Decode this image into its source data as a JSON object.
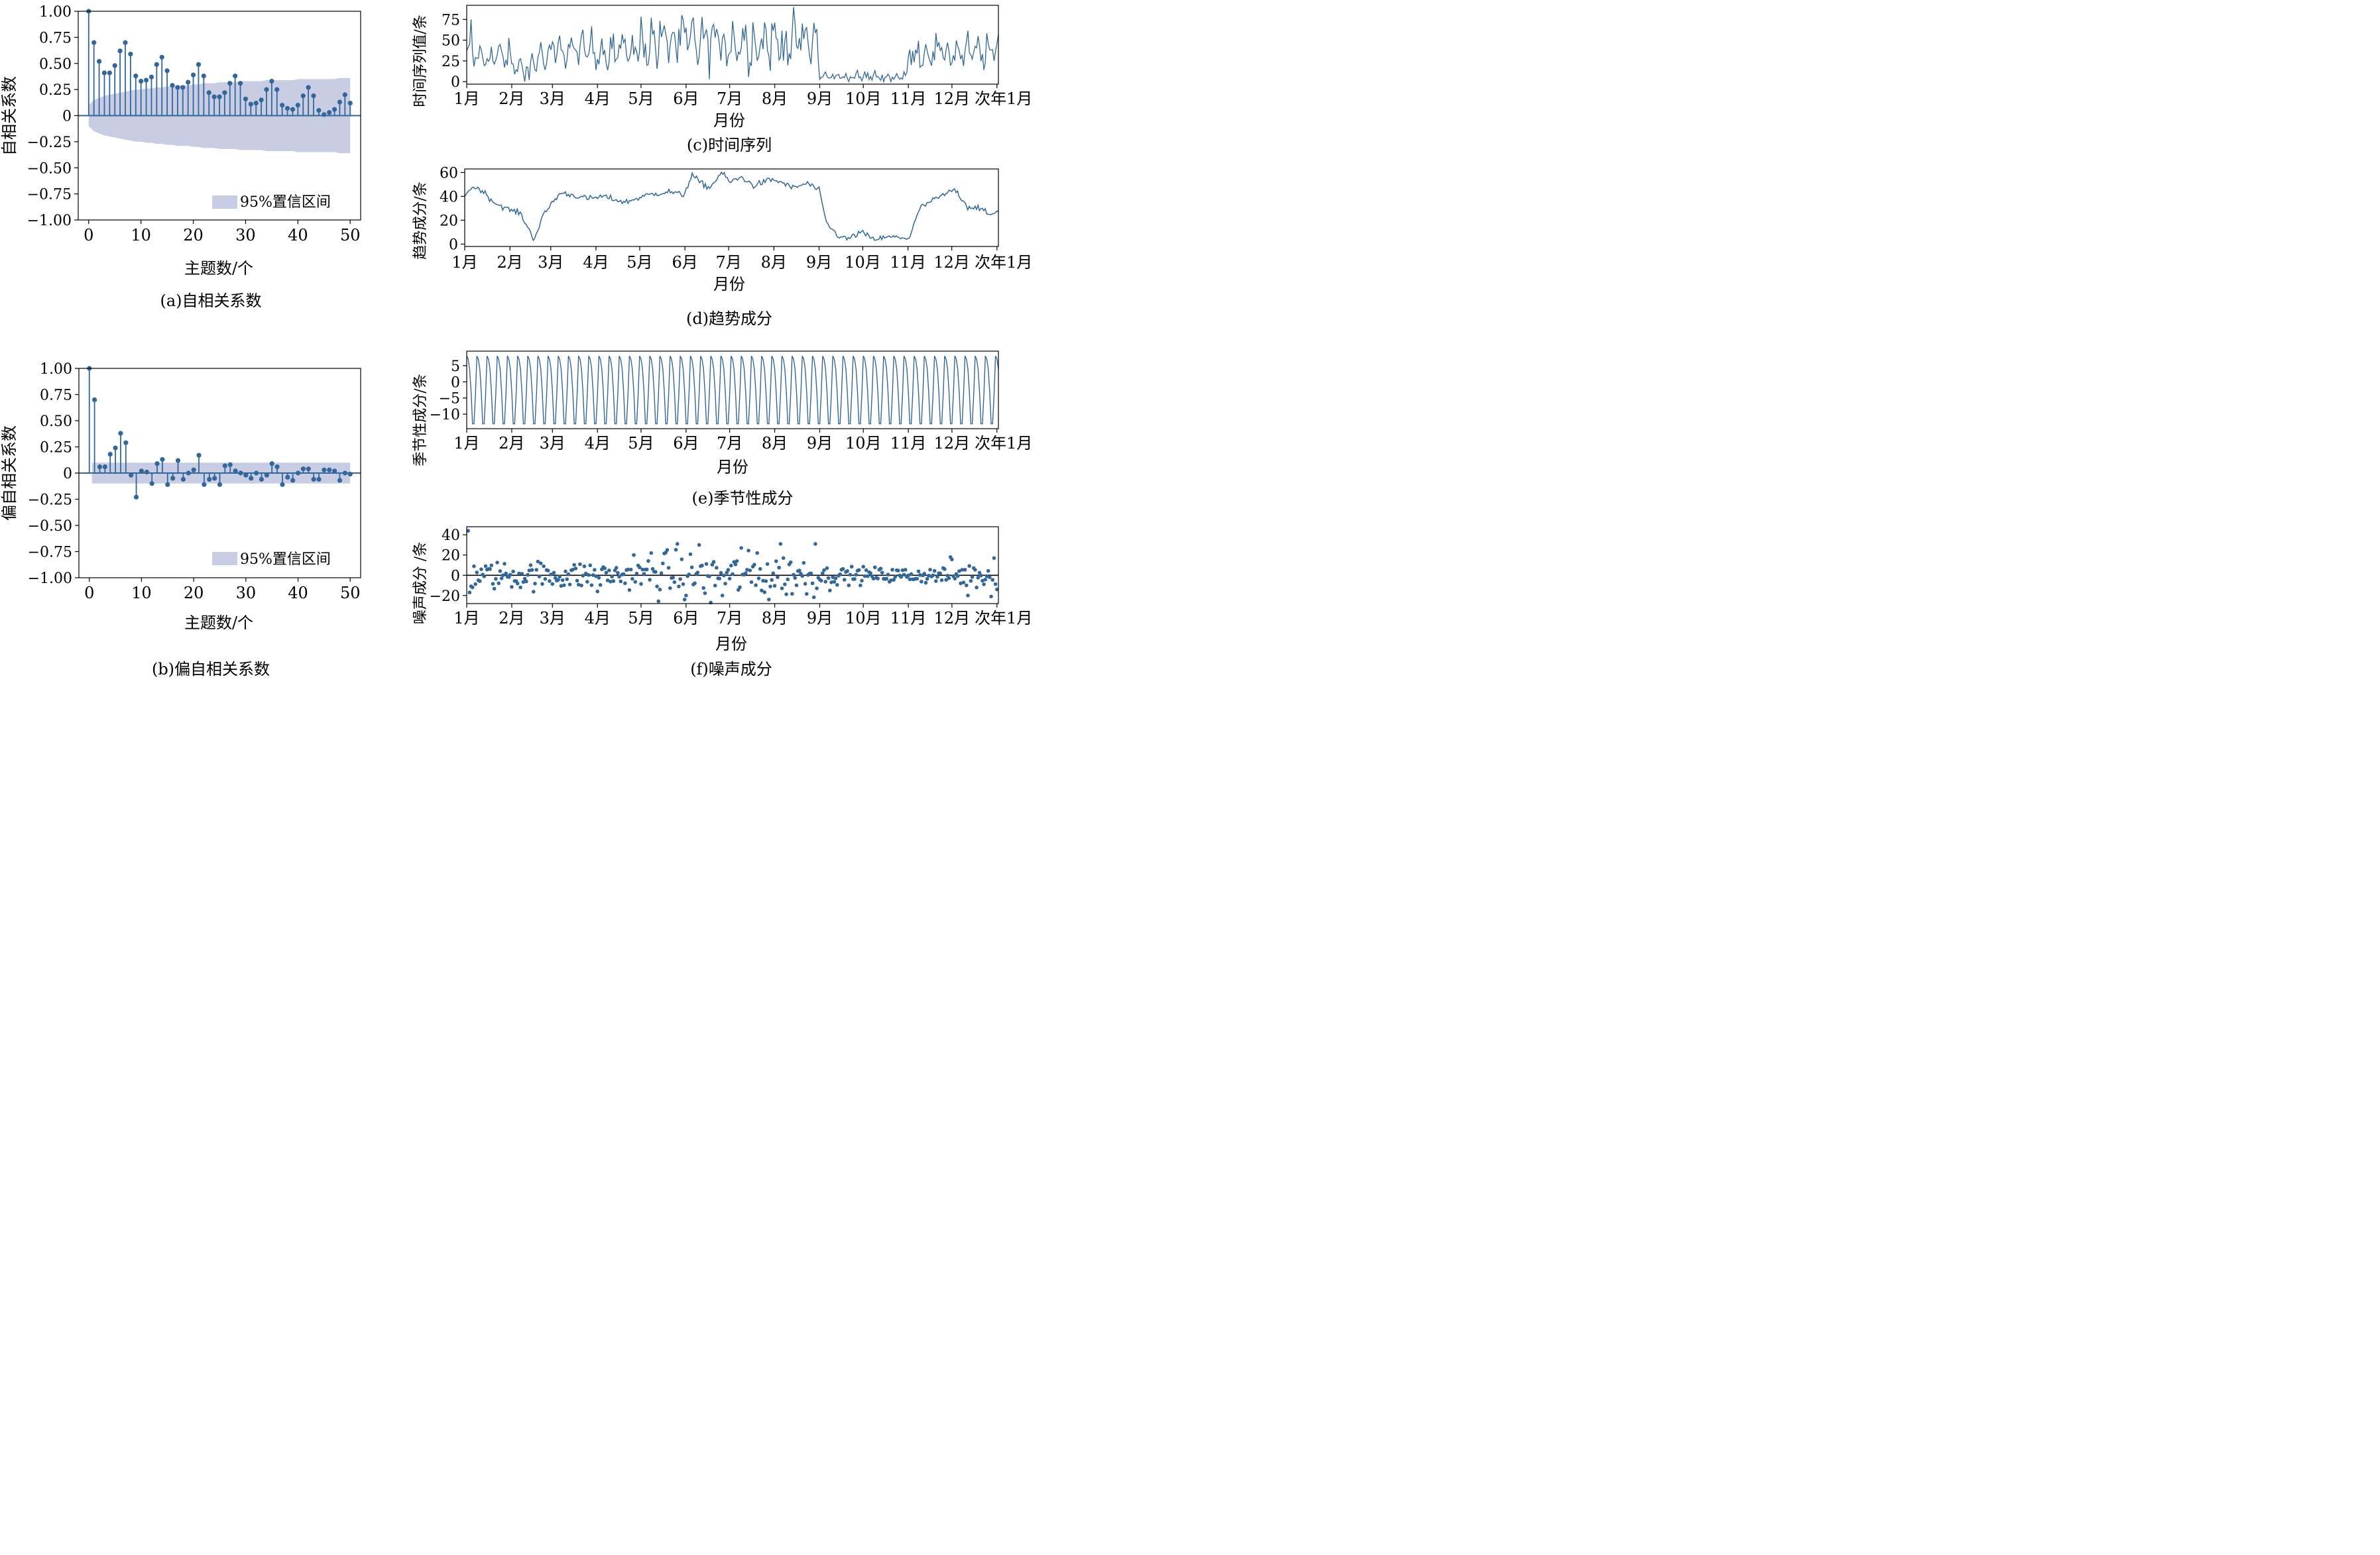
{
  "months": [
    "1月",
    "2月",
    "3月",
    "4月",
    "5月",
    "6月",
    "7月",
    "8月",
    "9月",
    "10月",
    "11月",
    "12月",
    "次年1月"
  ],
  "colors": {
    "line": "#31679a",
    "band": "#c8cde3",
    "axis": "#000000"
  },
  "chart_data": [
    {
      "id": "a",
      "type": "stem",
      "title": "(a)自相关系数",
      "xlabel": "主题数/个",
      "ylabel": "自相关系数",
      "xlim": [
        -2,
        52
      ],
      "ylim": [
        -1.0,
        1.0
      ],
      "xticks": [
        "0",
        "10",
        "20",
        "30",
        "40",
        "50"
      ],
      "yticks": [
        "1.00",
        "0.75",
        "0.50",
        "0.25",
        "0",
        "−0.25",
        "−0.50",
        "−0.75",
        "−1.00"
      ],
      "legend": "95%置信区间",
      "legend_position": "lower-right",
      "lags": [
        0,
        1,
        2,
        3,
        4,
        5,
        6,
        7,
        8,
        9,
        10,
        11,
        12,
        13,
        14,
        15,
        16,
        17,
        18,
        19,
        20,
        21,
        22,
        23,
        24,
        25,
        26,
        27,
        28,
        29,
        30,
        31,
        32,
        33,
        34,
        35,
        36,
        37,
        38,
        39,
        40,
        41,
        42,
        43,
        44,
        45,
        46,
        47,
        48,
        49,
        50
      ],
      "values": [
        1.0,
        0.7,
        0.52,
        0.41,
        0.41,
        0.48,
        0.62,
        0.7,
        0.59,
        0.38,
        0.33,
        0.34,
        0.37,
        0.49,
        0.56,
        0.43,
        0.29,
        0.27,
        0.27,
        0.32,
        0.39,
        0.49,
        0.38,
        0.22,
        0.18,
        0.18,
        0.22,
        0.31,
        0.38,
        0.31,
        0.16,
        0.11,
        0.12,
        0.15,
        0.25,
        0.33,
        0.25,
        0.1,
        0.07,
        0.06,
        0.1,
        0.19,
        0.27,
        0.19,
        0.05,
        0.01,
        0.03,
        0.06,
        0.13,
        0.2,
        0.12
      ],
      "conf_upper": [
        0.1,
        0.15,
        0.17,
        0.19,
        0.2,
        0.21,
        0.22,
        0.23,
        0.24,
        0.25,
        0.25,
        0.26,
        0.26,
        0.27,
        0.27,
        0.28,
        0.28,
        0.29,
        0.29,
        0.29,
        0.3,
        0.3,
        0.31,
        0.31,
        0.31,
        0.32,
        0.32,
        0.32,
        0.32,
        0.33,
        0.33,
        0.33,
        0.33,
        0.33,
        0.34,
        0.34,
        0.34,
        0.34,
        0.34,
        0.34,
        0.35,
        0.35,
        0.35,
        0.35,
        0.35,
        0.35,
        0.35,
        0.35,
        0.36,
        0.36,
        0.36
      ]
    },
    {
      "id": "b",
      "type": "stem",
      "title": "(b)偏自相关系数",
      "xlabel": "主题数/个",
      "ylabel": "偏自相关系数",
      "xlim": [
        -2,
        52
      ],
      "ylim": [
        -1.0,
        1.0
      ],
      "xticks": [
        "0",
        "10",
        "20",
        "30",
        "40",
        "50"
      ],
      "yticks": [
        "1.00",
        "0.75",
        "0.50",
        "0.25",
        "0",
        "−0.25",
        "−0.50",
        "−0.75",
        "−1.00"
      ],
      "legend": "95%置信区间",
      "legend_position": "lower-right",
      "conf_bound": 0.1,
      "lags": [
        0,
        1,
        2,
        3,
        4,
        5,
        6,
        7,
        8,
        9,
        10,
        11,
        12,
        13,
        14,
        15,
        16,
        17,
        18,
        19,
        20,
        21,
        22,
        23,
        24,
        25,
        26,
        27,
        28,
        29,
        30,
        31,
        32,
        33,
        34,
        35,
        36,
        37,
        38,
        39,
        40,
        41,
        42,
        43,
        44,
        45,
        46,
        47,
        48,
        49,
        50
      ],
      "values": [
        1.0,
        0.7,
        0.06,
        0.06,
        0.18,
        0.24,
        0.38,
        0.29,
        -0.02,
        -0.23,
        0.02,
        0.01,
        -0.1,
        0.09,
        0.13,
        -0.11,
        -0.05,
        0.12,
        -0.06,
        0.0,
        0.03,
        0.17,
        -0.11,
        -0.06,
        -0.05,
        -0.11,
        0.07,
        0.08,
        0.02,
        0.0,
        -0.02,
        -0.05,
        0.0,
        -0.06,
        -0.02,
        0.09,
        0.06,
        -0.11,
        -0.04,
        -0.07,
        0.0,
        0.04,
        0.04,
        -0.06,
        -0.06,
        0.03,
        0.03,
        0.02,
        -0.07,
        0.0,
        -0.01
      ]
    },
    {
      "id": "c",
      "type": "line",
      "title": "(c)时间序列",
      "xlabel": "月份",
      "ylabel": "时间序列值/条",
      "ylim": [
        -3,
        92
      ],
      "yticks": [
        "0",
        "25",
        "50",
        "75"
      ],
      "months_with_days": [
        0,
        31,
        59,
        90,
        120,
        151,
        181,
        212,
        243,
        273,
        304,
        334,
        365
      ],
      "segments": [
        {
          "start": 0,
          "end": 31,
          "base": 30,
          "wave_amp": 8,
          "noise": 12
        },
        {
          "start": 31,
          "end": 45,
          "base": 18,
          "wave_amp": 6,
          "noise": 8
        },
        {
          "start": 45,
          "end": 59,
          "base": 28,
          "wave_amp": 12,
          "noise": 10
        },
        {
          "start": 59,
          "end": 120,
          "base": 38,
          "wave_amp": 12,
          "noise": 14
        },
        {
          "start": 120,
          "end": 243,
          "base": 48,
          "wave_amp": 15,
          "noise": 22
        },
        {
          "start": 243,
          "end": 304,
          "base": 6,
          "wave_amp": 3,
          "noise": 5
        },
        {
          "start": 304,
          "end": 366,
          "base": 35,
          "wave_amp": 12,
          "noise": 12
        }
      ]
    },
    {
      "id": "d",
      "type": "line",
      "title": "(d)趋势成分",
      "xlabel": "月份",
      "ylabel": "趋势成分/条",
      "ylim": [
        -2,
        63
      ],
      "yticks": [
        "0",
        "20",
        "40",
        "60"
      ],
      "keypoints": [
        [
          0,
          42
        ],
        [
          6,
          48
        ],
        [
          12,
          45
        ],
        [
          20,
          35
        ],
        [
          30,
          29
        ],
        [
          38,
          26
        ],
        [
          42,
          17
        ],
        [
          47,
          5
        ],
        [
          49,
          8
        ],
        [
          53,
          22
        ],
        [
          60,
          35
        ],
        [
          66,
          43
        ],
        [
          74,
          41
        ],
        [
          85,
          38
        ],
        [
          95,
          40
        ],
        [
          110,
          35
        ],
        [
          125,
          41
        ],
        [
          140,
          44
        ],
        [
          150,
          41
        ],
        [
          156,
          58
        ],
        [
          161,
          52
        ],
        [
          168,
          47
        ],
        [
          176,
          60
        ],
        [
          182,
          52
        ],
        [
          190,
          56
        ],
        [
          198,
          49
        ],
        [
          210,
          54
        ],
        [
          217,
          52
        ],
        [
          225,
          47
        ],
        [
          235,
          51
        ],
        [
          243,
          45
        ],
        [
          248,
          18
        ],
        [
          255,
          8
        ],
        [
          262,
          4
        ],
        [
          272,
          10
        ],
        [
          280,
          4
        ],
        [
          293,
          6
        ],
        [
          305,
          5
        ],
        [
          312,
          30
        ],
        [
          320,
          36
        ],
        [
          330,
          42
        ],
        [
          336,
          46
        ],
        [
          341,
          38
        ],
        [
          345,
          31
        ],
        [
          352,
          31
        ],
        [
          360,
          24
        ],
        [
          366,
          28
        ]
      ]
    },
    {
      "id": "e",
      "type": "line",
      "title": "(e)季节性成分",
      "xlabel": "月份",
      "ylabel": "季节性成分/条",
      "ylim": [
        -14.5,
        9.5
      ],
      "yticks": [
        "5",
        "0",
        "−5",
        "−10"
      ],
      "period_days": 7,
      "pattern": [
        8,
        7,
        4,
        -3,
        -13,
        -13,
        -4
      ]
    },
    {
      "id": "f",
      "type": "scatter",
      "title": "(f)噪声成分",
      "xlabel": "月份",
      "ylabel": "噪声成分 /条",
      "ylim": [
        -28,
        48
      ],
      "yticks": [
        "40",
        "20",
        "0",
        "−20"
      ],
      "points_per_day": 1,
      "outliers": [
        [
          1,
          44
        ],
        [
          2,
          -17
        ],
        [
          4,
          -12
        ],
        [
          90,
          -16
        ],
        [
          115,
          20
        ],
        [
          127,
          22
        ],
        [
          138,
          25
        ],
        [
          145,
          31
        ],
        [
          160,
          30
        ],
        [
          176,
          -20
        ],
        [
          189,
          27
        ],
        [
          208,
          -24
        ],
        [
          216,
          31
        ],
        [
          240,
          31
        ],
        [
          200,
          22
        ],
        [
          150,
          -24
        ],
        [
          168,
          -27
        ],
        [
          250,
          -15
        ],
        [
          333,
          18
        ],
        [
          345,
          -20
        ],
        [
          361,
          -21
        ],
        [
          363,
          17
        ]
      ]
    }
  ]
}
